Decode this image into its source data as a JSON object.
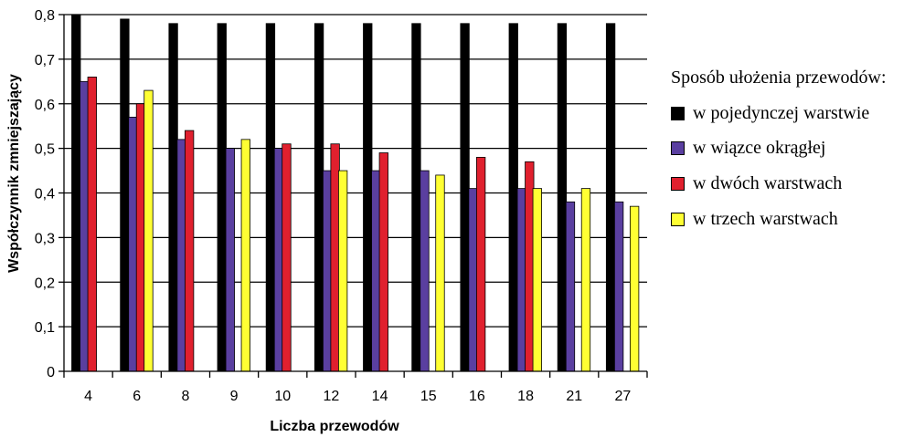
{
  "chart_data": {
    "type": "bar",
    "xlabel": "Liczba przewodów",
    "ylabel": "Współczynnik zmniejszający",
    "categories": [
      "4",
      "6",
      "8",
      "9",
      "10",
      "12",
      "14",
      "15",
      "16",
      "18",
      "21",
      "27"
    ],
    "ylim": [
      0,
      0.8
    ],
    "yticks": [
      "0",
      "0,1",
      "0,2",
      "0,3",
      "0,4",
      "0,5",
      "0,6",
      "0,7",
      "0,8"
    ],
    "grid": "horizontal",
    "legend_title": "Sposób ułożenia przewodów:",
    "legend_position": "right",
    "series": [
      {
        "name": "w pojedynczej warstwie",
        "color": "#000000",
        "values": [
          0.8,
          0.79,
          0.78,
          0.78,
          0.78,
          0.78,
          0.78,
          0.78,
          0.78,
          0.78,
          0.78,
          0.78
        ]
      },
      {
        "name": "w wiązce okrągłej",
        "color": "#5a3fa0",
        "values": [
          0.65,
          0.57,
          0.52,
          0.5,
          0.5,
          0.45,
          0.45,
          0.45,
          0.41,
          0.41,
          0.38,
          0.38
        ]
      },
      {
        "name": "w dwóch warstwach",
        "color": "#e0202e",
        "values": [
          0.66,
          0.6,
          0.54,
          null,
          0.51,
          0.51,
          0.49,
          null,
          0.48,
          0.47,
          null,
          null
        ]
      },
      {
        "name": "w trzech warstwach",
        "color": "#ffff33",
        "values": [
          null,
          0.63,
          null,
          0.52,
          null,
          0.45,
          null,
          0.44,
          null,
          0.41,
          0.41,
          0.37
        ]
      }
    ],
    "bars_drawn_behind": [
      {
        "category": "6",
        "value": 0.62
      },
      {
        "category": "9",
        "value": 0.51
      },
      {
        "category": "12",
        "value": 0.44
      },
      {
        "category": "15",
        "value": 0.43
      },
      {
        "category": "18",
        "value": 0.4
      },
      {
        "category": "21",
        "value": 0.4
      },
      {
        "category": "27",
        "value": 0.36
      }
    ]
  }
}
